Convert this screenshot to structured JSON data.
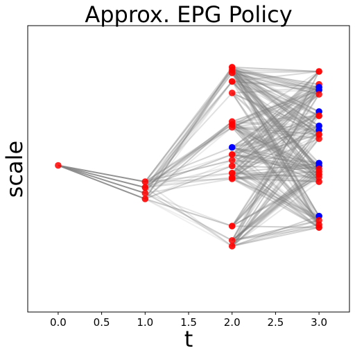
{
  "chart_data": {
    "type": "scatter",
    "title": "Approx. EPG Policy",
    "xlabel": "t",
    "ylabel": "scale",
    "xlim": [
      -0.35,
      3.35
    ],
    "ylim": [
      0,
      10
    ],
    "xticks": [
      0.0,
      0.5,
      1.0,
      1.5,
      2.0,
      2.5,
      3.0
    ],
    "xtick_labels": [
      "0.0",
      "0.5",
      "1.0",
      "1.5",
      "2.0",
      "2.5",
      "3.0"
    ],
    "yticks_shown": false,
    "grid": false,
    "point_color": "#ff0000",
    "highlight_color": "#0000ff",
    "line_color": "#808080",
    "points": [
      {
        "t": 0.0,
        "v": 5.12,
        "c": "red"
      },
      {
        "t": 1.0,
        "v": 4.55,
        "c": "red"
      },
      {
        "t": 1.0,
        "v": 4.35,
        "c": "red"
      },
      {
        "t": 1.0,
        "v": 4.15,
        "c": "red"
      },
      {
        "t": 1.0,
        "v": 3.95,
        "c": "red"
      },
      {
        "t": 2.0,
        "v": 8.55,
        "c": "red"
      },
      {
        "t": 2.0,
        "v": 8.45,
        "c": "red"
      },
      {
        "t": 2.0,
        "v": 8.35,
        "c": "red"
      },
      {
        "t": 2.0,
        "v": 8.05,
        "c": "red"
      },
      {
        "t": 2.0,
        "v": 7.65,
        "c": "red"
      },
      {
        "t": 2.0,
        "v": 6.65,
        "c": "red"
      },
      {
        "t": 2.0,
        "v": 6.55,
        "c": "red"
      },
      {
        "t": 2.0,
        "v": 6.45,
        "c": "red"
      },
      {
        "t": 2.0,
        "v": 5.75,
        "c": "blue"
      },
      {
        "t": 2.0,
        "v": 5.5,
        "c": "red"
      },
      {
        "t": 2.0,
        "v": 5.3,
        "c": "red"
      },
      {
        "t": 2.0,
        "v": 5.1,
        "c": "red"
      },
      {
        "t": 2.0,
        "v": 4.85,
        "c": "red"
      },
      {
        "t": 2.0,
        "v": 4.7,
        "c": "red"
      },
      {
        "t": 2.0,
        "v": 4.65,
        "c": "red"
      },
      {
        "t": 2.0,
        "v": 3.0,
        "c": "red"
      },
      {
        "t": 2.0,
        "v": 2.5,
        "c": "red"
      },
      {
        "t": 2.0,
        "v": 2.3,
        "c": "red"
      },
      {
        "t": 3.0,
        "v": 8.4,
        "c": "red"
      },
      {
        "t": 3.0,
        "v": 7.95,
        "c": "red"
      },
      {
        "t": 3.0,
        "v": 7.85,
        "c": "blue"
      },
      {
        "t": 3.0,
        "v": 7.75,
        "c": "blue"
      },
      {
        "t": 3.0,
        "v": 7.6,
        "c": "red"
      },
      {
        "t": 3.0,
        "v": 7.0,
        "c": "blue"
      },
      {
        "t": 3.0,
        "v": 6.85,
        "c": "red"
      },
      {
        "t": 3.0,
        "v": 6.5,
        "c": "blue"
      },
      {
        "t": 3.0,
        "v": 6.35,
        "c": "blue"
      },
      {
        "t": 3.0,
        "v": 6.2,
        "c": "red"
      },
      {
        "t": 3.0,
        "v": 6.05,
        "c": "red"
      },
      {
        "t": 3.0,
        "v": 5.2,
        "c": "blue"
      },
      {
        "t": 3.0,
        "v": 5.1,
        "c": "blue"
      },
      {
        "t": 3.0,
        "v": 5.0,
        "c": "red"
      },
      {
        "t": 3.0,
        "v": 4.9,
        "c": "red"
      },
      {
        "t": 3.0,
        "v": 4.8,
        "c": "red"
      },
      {
        "t": 3.0,
        "v": 4.7,
        "c": "red"
      },
      {
        "t": 3.0,
        "v": 4.55,
        "c": "red"
      },
      {
        "t": 3.0,
        "v": 3.35,
        "c": "blue"
      },
      {
        "t": 3.0,
        "v": 3.2,
        "c": "red"
      },
      {
        "t": 3.0,
        "v": 3.05,
        "c": "red"
      },
      {
        "t": 3.0,
        "v": 2.95,
        "c": "red"
      }
    ]
  }
}
